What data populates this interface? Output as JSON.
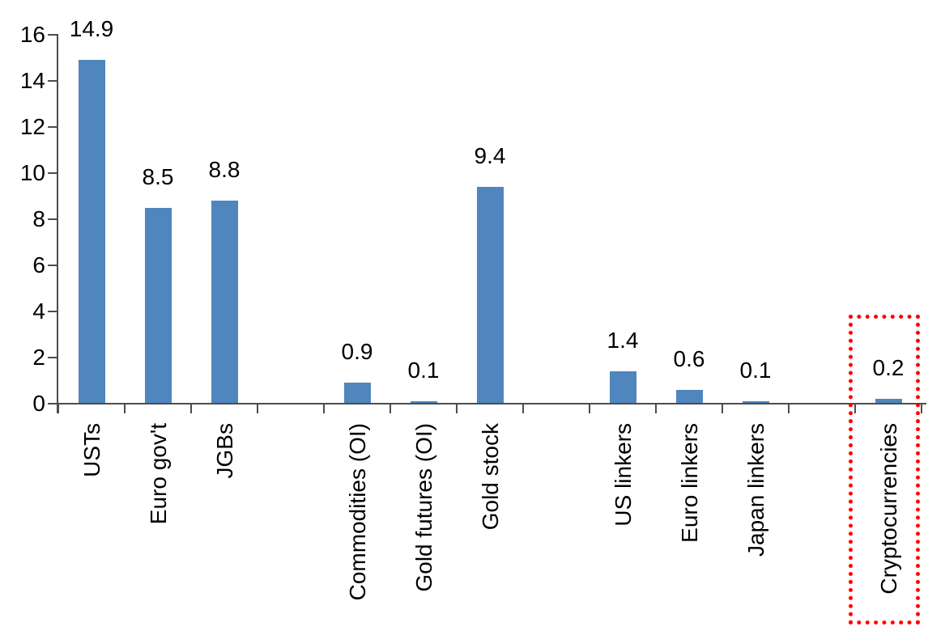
{
  "chart_data": {
    "type": "bar",
    "title": "",
    "xlabel": "",
    "ylabel": "",
    "categories": [
      "USTs",
      "Euro gov't",
      "JGBs",
      "Commodities (OI)",
      "Gold futures (OI)",
      "Gold stock",
      "US linkers",
      "Euro linkers",
      "Japan linkers",
      "Cryptocurrencies"
    ],
    "values": [
      14.9,
      8.5,
      8.8,
      0.9,
      0.1,
      9.4,
      1.4,
      0.6,
      0.1,
      0.2
    ],
    "value_labels": [
      "14.9",
      "8.5",
      "8.8",
      "0.9",
      "0.1",
      "9.4",
      "1.4",
      "0.6",
      "0.1",
      "0.2"
    ],
    "slots": [
      0,
      1,
      2,
      4,
      5,
      6,
      8,
      9,
      10,
      12
    ],
    "total_slots": 13,
    "y_ticks": [
      0,
      2,
      4,
      6,
      8,
      10,
      12,
      14,
      16
    ],
    "y_tick_labels": [
      "0",
      "2",
      "4",
      "6",
      "8",
      "10",
      "12",
      "14",
      "16"
    ],
    "ylim": [
      0,
      16
    ],
    "grid": false,
    "legend": null,
    "bar_color": "#4e86bd",
    "axis_color": "#4d4d4d",
    "text_color": "#000000",
    "highlight": {
      "category": "Cryptocurrencies",
      "style": "red-dotted-box",
      "color": "#ff0000"
    }
  }
}
